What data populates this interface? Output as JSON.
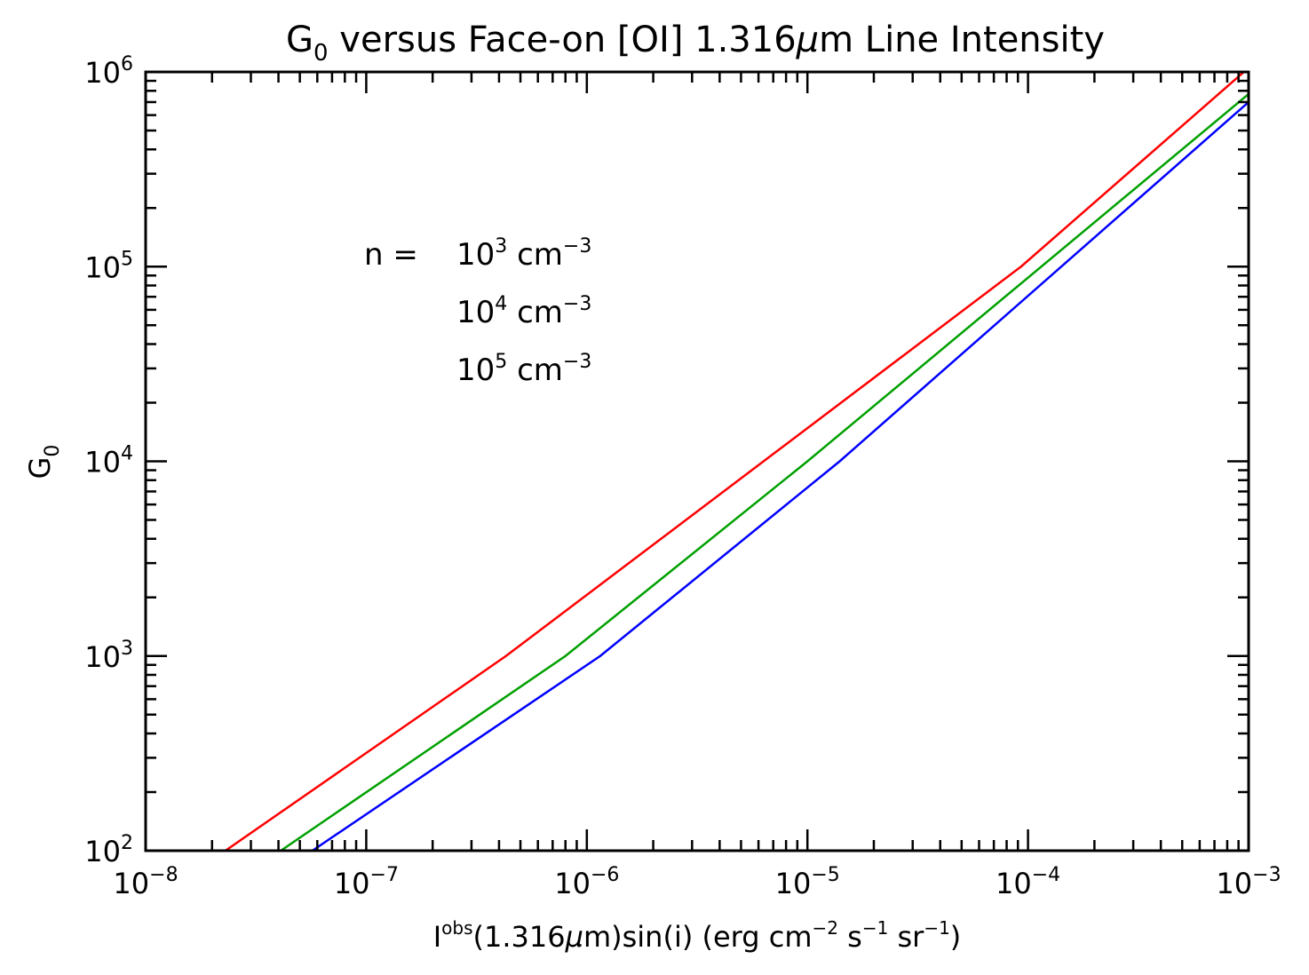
{
  "chart_data": {
    "type": "line",
    "title": {
      "prefix": "G",
      "prefix_sub": "0",
      "main": " versus Face-on [OI] 1.316",
      "mu": "μ",
      "suffix": "m Line Intensity"
    },
    "xlabel": {
      "I": "I",
      "I_sup": "obs",
      "a": "(1.316",
      "mu": "μ",
      "b": "m)sin(i) (erg cm",
      "sup1": "−2",
      "c": " s",
      "sup2": "−1",
      "d": " sr",
      "sup3": "−1",
      "e": ")"
    },
    "ylabel": {
      "main": "G",
      "sub": "0"
    },
    "xscale": "log",
    "yscale": "log",
    "xlim": [
      1e-08,
      0.001
    ],
    "ylim": [
      100,
      1000000
    ],
    "x_ticks": [
      {
        "base": "10",
        "exp": "−8"
      },
      {
        "base": "10",
        "exp": "−7"
      },
      {
        "base": "10",
        "exp": "−6"
      },
      {
        "base": "10",
        "exp": "−5"
      },
      {
        "base": "10",
        "exp": "−4"
      },
      {
        "base": "10",
        "exp": "−3"
      }
    ],
    "y_ticks": [
      {
        "base": "10",
        "exp": "2"
      },
      {
        "base": "10",
        "exp": "3"
      },
      {
        "base": "10",
        "exp": "4"
      },
      {
        "base": "10",
        "exp": "5"
      },
      {
        "base": "10",
        "exp": "6"
      }
    ],
    "legend_prefix": "n  = ",
    "legend_placement": "upper-left",
    "series": [
      {
        "name": {
          "base": "10",
          "exp": "3",
          "unit": " cm",
          "unit_exp": "−3"
        },
        "color": "#ff0000",
        "points": [
          [
            2.3e-08,
            100
          ],
          [
            4.3e-07,
            1000
          ],
          [
            9.3e-05,
            100000
          ],
          [
            0.001,
            1050000
          ]
        ]
      },
      {
        "name": {
          "base": "10",
          "exp": "4",
          "unit": " cm",
          "unit_exp": "−3"
        },
        "color": "#00a000",
        "points": [
          [
            4.1e-08,
            100
          ],
          [
            8e-07,
            1000
          ],
          [
            1e-05,
            10000
          ],
          [
            0.001,
            770000
          ]
        ]
      },
      {
        "name": {
          "base": "10",
          "exp": "5",
          "unit": " cm",
          "unit_exp": "−3"
        },
        "color": "#0000ff",
        "points": [
          [
            5.7e-08,
            100
          ],
          [
            1.15e-06,
            1000
          ],
          [
            1.4e-05,
            10000
          ],
          [
            0.001,
            700000
          ]
        ]
      }
    ]
  }
}
